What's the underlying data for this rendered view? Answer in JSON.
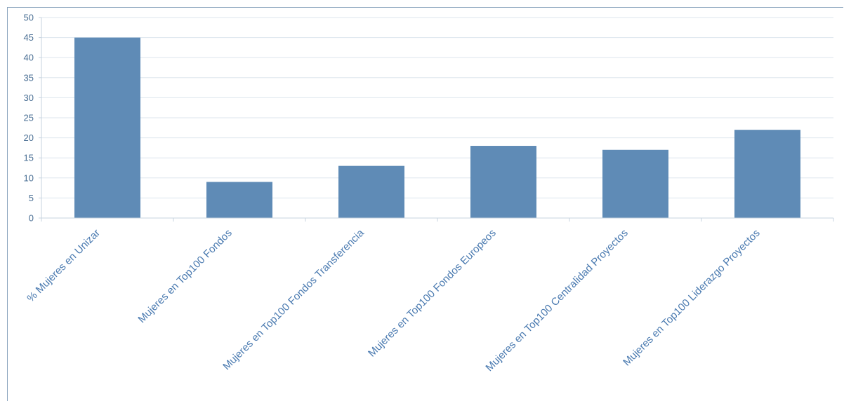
{
  "chart_data": {
    "type": "bar",
    "title": "",
    "xlabel": "",
    "ylabel": "",
    "categories": [
      "% Mujeres en Unizar",
      "Mujeres en Top100 Fondos",
      "Mujeres en Top100 Fondos Transferencia",
      "Mujeres en Top100 Fondos Europeos",
      "Mujeres en Top100 Centralidad Proyectos",
      "Mujeres en Top100 Liderazgo Proyectos"
    ],
    "values": [
      45,
      9,
      13,
      18,
      17,
      22
    ],
    "ylim": [
      0,
      50
    ],
    "yticks": [
      0,
      5,
      10,
      15,
      20,
      25,
      30,
      35,
      40,
      45,
      50
    ],
    "grid": true,
    "legend": "none",
    "colors": {
      "bar": "#5f8bb6",
      "grid": "#dde6ee",
      "axis": "#c7d3df",
      "tick_text": "#4a6f94",
      "category_text": "#4a7ab0"
    }
  }
}
